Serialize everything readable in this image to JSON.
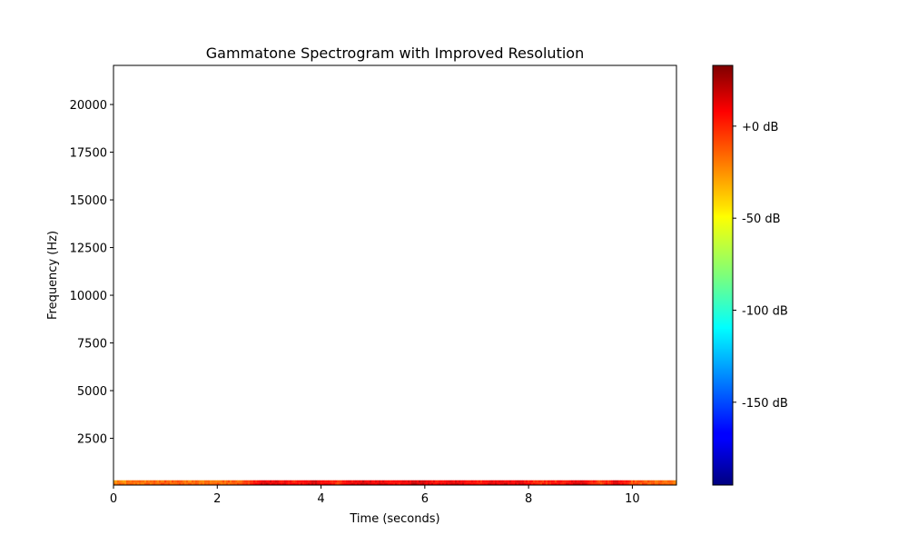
{
  "chart_data": {
    "type": "heatmap",
    "title": "Gammatone Spectrogram with Improved Resolution",
    "xlabel": "Time (seconds)",
    "ylabel": "Frequency (Hz)",
    "xlim": [
      0,
      10.85
    ],
    "ylim": [
      50,
      22050
    ],
    "x_ticks": [
      0,
      2,
      4,
      6,
      8,
      10
    ],
    "x_tick_labels": [
      "0",
      "2",
      "4",
      "6",
      "8",
      "10"
    ],
    "y_ticks": [
      2500,
      5000,
      7500,
      10000,
      12500,
      15000,
      17500,
      20000
    ],
    "y_tick_labels": [
      "2500",
      "5000",
      "7500",
      "10000",
      "12500",
      "15000",
      "17500",
      "20000"
    ],
    "band": {
      "freq_range_hz": [
        50,
        300
      ],
      "time_range_s": [
        0,
        10.85
      ],
      "intensity_db_profile": {
        "x": [
          0,
          0.5,
          1.0,
          1.5,
          2.0,
          2.5,
          2.9,
          3.2,
          3.5,
          3.9,
          4.3,
          4.8,
          5.1,
          5.5,
          5.8,
          6.2,
          6.7,
          7.0,
          7.4,
          7.8,
          8.2,
          8.6,
          9.0,
          9.4,
          9.7,
          10.0,
          10.4,
          10.85
        ],
        "db": [
          -22,
          -20,
          -14,
          -18,
          -16,
          -12,
          15,
          8,
          2,
          14,
          -5,
          16,
          10,
          4,
          18,
          6,
          14,
          0,
          12,
          10,
          -4,
          2,
          14,
          -8,
          12,
          -10,
          -16,
          -20
        ]
      }
    },
    "colorbar": {
      "colormap": "jet",
      "range_db": [
        -195,
        33
      ],
      "ticks": [
        0,
        -50,
        -100,
        -150
      ],
      "tick_labels": [
        "+0 dB",
        "-50 dB",
        "-100 dB",
        "-150 dB"
      ]
    },
    "grid": false
  }
}
